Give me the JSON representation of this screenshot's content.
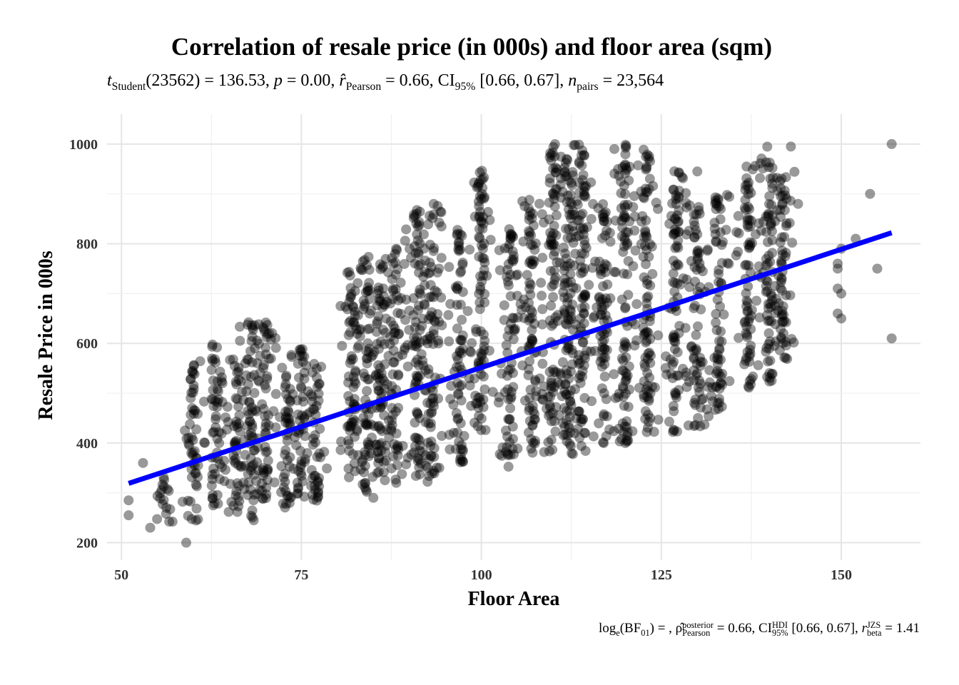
{
  "chart_data": {
    "type": "scatter",
    "title": "Correlation of resale price (in 000s) and floor area (sqm)",
    "subtitle": {
      "t_label": "t",
      "t_sub": "Student",
      "t_val": "(23562) = 136.53, ",
      "p_label": "p",
      "p_val": " = 0.00, ",
      "r_label": "r̂",
      "r_sub": "Pearson",
      "r_val": " = 0.66, CI",
      "ci_sub": "95%",
      "ci_val": " [0.66, 0.67], ",
      "n_label": "n",
      "n_sub": "pairs",
      "n_val": " = 23,564"
    },
    "caption": {
      "log": "log",
      "log_sub": "e",
      "bf": "(BF",
      "bf_sub": "01",
      "bf_end": ") = , ",
      "rho": "ρ̂",
      "rho_sup": "posterior",
      "rho_sub": "Pearson",
      "rho_val": " = 0.66, CI",
      "ci_sup": "HDI",
      "ci_sub": "95%",
      "ci_val": " [0.66, 0.67], ",
      "r": "r",
      "r_sup": "JZS",
      "r_sub": "beta",
      "r_val": " = 1.41"
    },
    "xlabel": "Floor Area",
    "ylabel": "Resale Price in 000s",
    "xlim": [
      48,
      161
    ],
    "ylim": [
      165,
      1060
    ],
    "xticks": [
      50,
      75,
      100,
      125,
      150
    ],
    "yticks": [
      200,
      400,
      600,
      800,
      1000
    ],
    "grid": true,
    "point_color": "#000000",
    "point_alpha": 0.4,
    "fit_line": {
      "color": "#0000FF",
      "x": [
        51,
        157
      ],
      "y": [
        319,
        822
      ]
    },
    "point_columns": [
      {
        "x": 56,
        "ymin": 230,
        "ymax": 340
      },
      {
        "x": 60,
        "ymin": 240,
        "ymax": 565
      },
      {
        "x": 63,
        "ymin": 260,
        "ymax": 600
      },
      {
        "x": 66,
        "ymin": 260,
        "ymax": 580
      },
      {
        "x": 68,
        "ymin": 240,
        "ymax": 650
      },
      {
        "x": 70,
        "ymin": 280,
        "ymax": 650
      },
      {
        "x": 73,
        "ymin": 270,
        "ymax": 560
      },
      {
        "x": 75,
        "ymin": 290,
        "ymax": 600
      },
      {
        "x": 77,
        "ymin": 280,
        "ymax": 560
      },
      {
        "x": 82,
        "ymin": 330,
        "ymax": 750
      },
      {
        "x": 84,
        "ymin": 300,
        "ymax": 790
      },
      {
        "x": 86,
        "ymin": 330,
        "ymax": 760
      },
      {
        "x": 88,
        "ymin": 320,
        "ymax": 790
      },
      {
        "x": 91,
        "ymin": 320,
        "ymax": 870
      },
      {
        "x": 93,
        "ymin": 330,
        "ymax": 880
      },
      {
        "x": 97,
        "ymin": 360,
        "ymax": 830
      },
      {
        "x": 100,
        "ymin": 400,
        "ymax": 950
      },
      {
        "x": 104,
        "ymin": 350,
        "ymax": 830
      },
      {
        "x": 107,
        "ymin": 380,
        "ymax": 900
      },
      {
        "x": 110,
        "ymin": 380,
        "ymax": 1000
      },
      {
        "x": 112,
        "ymin": 375,
        "ymax": 1000
      },
      {
        "x": 114,
        "ymin": 380,
        "ymax": 1000
      },
      {
        "x": 117,
        "ymin": 400,
        "ymax": 880
      },
      {
        "x": 120,
        "ymin": 400,
        "ymax": 1000
      },
      {
        "x": 123,
        "ymin": 420,
        "ymax": 990
      },
      {
        "x": 127,
        "ymin": 420,
        "ymax": 950
      },
      {
        "x": 130,
        "ymin": 430,
        "ymax": 890
      },
      {
        "x": 133,
        "ymin": 460,
        "ymax": 900
      },
      {
        "x": 137,
        "ymin": 500,
        "ymax": 960
      },
      {
        "x": 140,
        "ymin": 520,
        "ymax": 1000
      },
      {
        "x": 142,
        "ymin": 550,
        "ymax": 950
      }
    ],
    "points": [
      [
        150,
        790
      ],
      [
        149.5,
        760
      ],
      [
        149.5,
        750
      ],
      [
        149.5,
        710
      ],
      [
        150,
        700
      ],
      [
        149.5,
        660
      ],
      [
        150,
        650
      ],
      [
        152,
        810
      ],
      [
        154,
        900
      ],
      [
        155,
        750
      ],
      [
        157,
        1000
      ],
      [
        157,
        610
      ],
      [
        59,
        200
      ],
      [
        51,
        285
      ],
      [
        51,
        255
      ],
      [
        53,
        360
      ],
      [
        54,
        230
      ],
      [
        85,
        290
      ],
      [
        144,
        880
      ],
      [
        143,
        995
      ],
      [
        117,
        400
      ],
      [
        120,
        400
      ],
      [
        130,
        945
      ],
      [
        131,
        437
      ]
    ]
  }
}
